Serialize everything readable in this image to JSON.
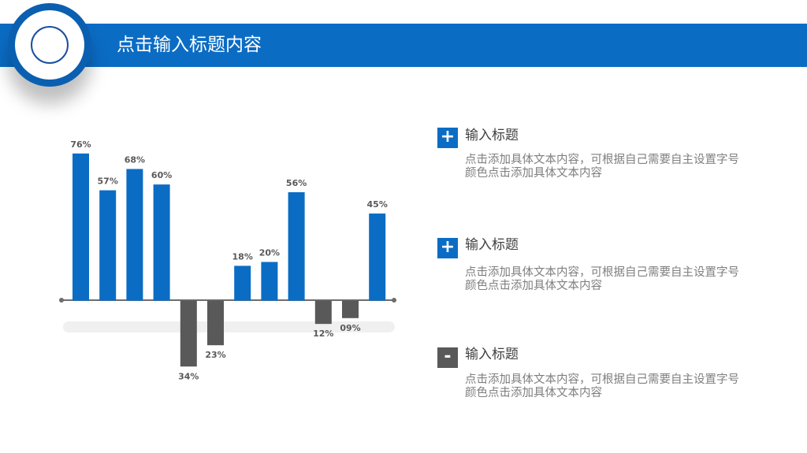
{
  "header": {
    "title": "点击输入标题内容"
  },
  "items": [
    {
      "title": "输入标题",
      "text": "点击添加具体文本内容，可根据自己需要自主设置字号颜色点击添加具体文本内容"
    },
    {
      "title": "输入标题",
      "text": "点击添加具体文本内容，可根据自己需要自主设置字号颜色点击添加具体文本内容"
    },
    {
      "title": "输入标题",
      "text": "点击添加具体文本内容，可根据自己需要自主设置字号颜色点击添加具体文本内容"
    }
  ],
  "chart_data": {
    "type": "bar",
    "categories": [
      null,
      null,
      null,
      null,
      null,
      null,
      null,
      null,
      null,
      null,
      null,
      null
    ],
    "series": [
      {
        "color": "#0b6cc4",
        "values": [
          76,
          57,
          68,
          60,
          null,
          null,
          18,
          20,
          56,
          null,
          null,
          45
        ],
        "value_labels": [
          "76%",
          "57%",
          "68%",
          "60%",
          null,
          null,
          "18%",
          "20%",
          "56%",
          null,
          null,
          "45%"
        ]
      },
      {
        "color": "#595959",
        "values": [
          null,
          null,
          null,
          null,
          -34,
          -23,
          null,
          null,
          null,
          -12,
          -9,
          null
        ],
        "value_labels": [
          null,
          null,
          null,
          null,
          "34%",
          "23%",
          null,
          null,
          null,
          "12%",
          "09%",
          null
        ]
      }
    ],
    "ylim": [
      -40,
      80
    ]
  }
}
